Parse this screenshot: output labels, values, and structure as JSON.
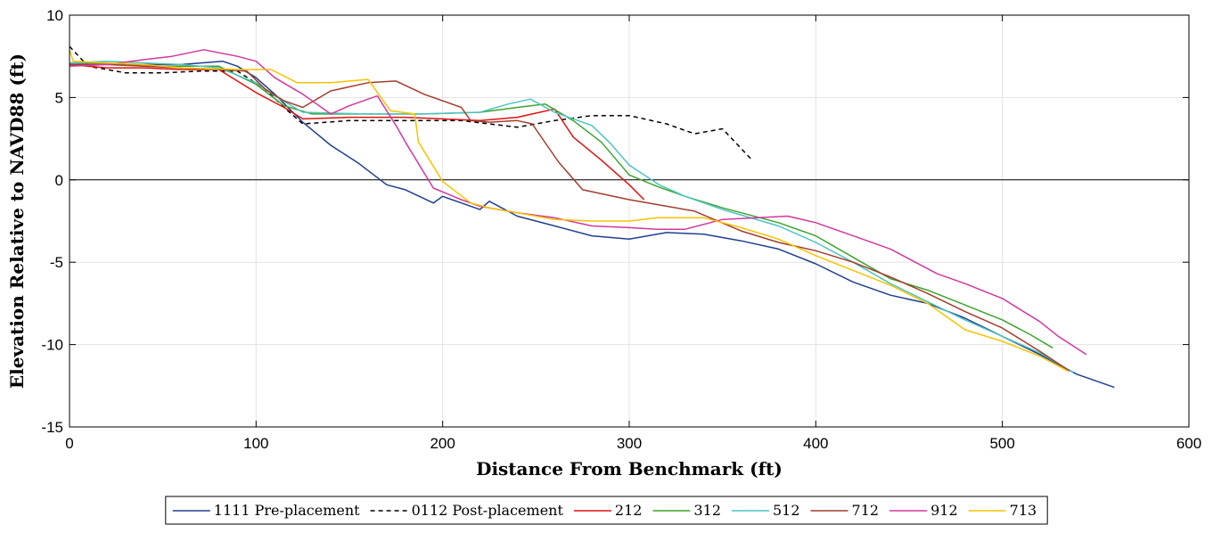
{
  "chart_data": {
    "type": "line",
    "xlabel": "Distance From Benchmark (ft)",
    "ylabel": "Elevation Relative to NAVD88 (ft)",
    "xlim": [
      0,
      600
    ],
    "ylim": [
      -15,
      10
    ],
    "xticks": [
      0,
      100,
      200,
      300,
      400,
      500,
      600
    ],
    "yticks": [
      -15,
      -10,
      -5,
      0,
      5,
      10
    ],
    "grid": true,
    "zero_line": true,
    "legend_position": "bottom-outside",
    "series": [
      {
        "name": "1111 Pre-placement",
        "color": "#1f3f8f",
        "dash": "solid",
        "points": [
          [
            0,
            7
          ],
          [
            20,
            7
          ],
          [
            40,
            7
          ],
          [
            60,
            7
          ],
          [
            82,
            7.2
          ],
          [
            90,
            6.9
          ],
          [
            100,
            6.2
          ],
          [
            110,
            5.2
          ],
          [
            125,
            3.5
          ],
          [
            140,
            2.1
          ],
          [
            155,
            1
          ],
          [
            170,
            -0.3
          ],
          [
            180,
            -0.6
          ],
          [
            195,
            -1.4
          ],
          [
            200,
            -1
          ],
          [
            210,
            -1.4
          ],
          [
            220,
            -1.8
          ],
          [
            225,
            -1.3
          ],
          [
            240,
            -2.2
          ],
          [
            260,
            -2.8
          ],
          [
            280,
            -3.4
          ],
          [
            300,
            -3.6
          ],
          [
            320,
            -3.2
          ],
          [
            340,
            -3.3
          ],
          [
            360,
            -3.7
          ],
          [
            380,
            -4.2
          ],
          [
            400,
            -5.1
          ],
          [
            420,
            -6.2
          ],
          [
            440,
            -7
          ],
          [
            460,
            -7.5
          ],
          [
            480,
            -8.4
          ],
          [
            500,
            -9.5
          ],
          [
            520,
            -10.6
          ],
          [
            540,
            -11.8
          ],
          [
            560,
            -12.6
          ]
        ]
      },
      {
        "name": "0112 Post-placement",
        "color": "#000000",
        "dash": "dashed",
        "points": [
          [
            0,
            8.1
          ],
          [
            10,
            6.9
          ],
          [
            30,
            6.5
          ],
          [
            50,
            6.5
          ],
          [
            70,
            6.6
          ],
          [
            90,
            6.6
          ],
          [
            105,
            5.5
          ],
          [
            115,
            4.4
          ],
          [
            125,
            3.4
          ],
          [
            150,
            3.6
          ],
          [
            180,
            3.6
          ],
          [
            210,
            3.6
          ],
          [
            240,
            3.2
          ],
          [
            260,
            3.6
          ],
          [
            280,
            3.9
          ],
          [
            300,
            3.9
          ],
          [
            320,
            3.4
          ],
          [
            335,
            2.8
          ],
          [
            350,
            3.1
          ],
          [
            365,
            1.3
          ]
        ]
      },
      {
        "name": "212",
        "color": "#dd1111",
        "dash": "solid",
        "points": [
          [
            0,
            7
          ],
          [
            20,
            6.8
          ],
          [
            40,
            6.8
          ],
          [
            60,
            6.7
          ],
          [
            80,
            6.7
          ],
          [
            100,
            5.3
          ],
          [
            115,
            4.4
          ],
          [
            125,
            3.7
          ],
          [
            150,
            3.8
          ],
          [
            180,
            3.8
          ],
          [
            200,
            3.7
          ],
          [
            220,
            3.6
          ],
          [
            240,
            3.8
          ],
          [
            252,
            4.1
          ],
          [
            260,
            4.3
          ],
          [
            270,
            2.6
          ],
          [
            285,
            1.2
          ],
          [
            300,
            -0.3
          ],
          [
            308,
            -1.2
          ]
        ]
      },
      {
        "name": "312",
        "color": "#3ea32e",
        "dash": "solid",
        "points": [
          [
            0,
            7.1
          ],
          [
            20,
            7.1
          ],
          [
            40,
            6.9
          ],
          [
            60,
            6.9
          ],
          [
            80,
            6.9
          ],
          [
            100,
            5.8
          ],
          [
            115,
            4.5
          ],
          [
            130,
            4
          ],
          [
            160,
            4
          ],
          [
            190,
            4
          ],
          [
            220,
            4.1
          ],
          [
            240,
            4.4
          ],
          [
            255,
            4.6
          ],
          [
            270,
            3.6
          ],
          [
            285,
            2.3
          ],
          [
            300,
            0.3
          ],
          [
            315,
            -0.4
          ],
          [
            330,
            -1
          ],
          [
            350,
            -1.7
          ],
          [
            380,
            -2.6
          ],
          [
            400,
            -3.4
          ],
          [
            420,
            -4.7
          ],
          [
            440,
            -6
          ],
          [
            460,
            -6.7
          ],
          [
            480,
            -7.6
          ],
          [
            500,
            -8.5
          ],
          [
            515,
            -9.4
          ],
          [
            527,
            -10.2
          ]
        ]
      },
      {
        "name": "512",
        "color": "#4ec3c3",
        "dash": "solid",
        "points": [
          [
            0,
            7.1
          ],
          [
            20,
            7.2
          ],
          [
            40,
            7.1
          ],
          [
            60,
            7
          ],
          [
            80,
            6.8
          ],
          [
            100,
            5.9
          ],
          [
            110,
            5.1
          ],
          [
            125,
            4.1
          ],
          [
            160,
            4
          ],
          [
            190,
            4
          ],
          [
            220,
            4.1
          ],
          [
            235,
            4.6
          ],
          [
            247,
            4.9
          ],
          [
            260,
            4.1
          ],
          [
            280,
            3.3
          ],
          [
            290,
            2.2
          ],
          [
            300,
            0.9
          ],
          [
            316,
            -0.3
          ],
          [
            330,
            -1
          ],
          [
            350,
            -1.8
          ],
          [
            380,
            -2.8
          ],
          [
            400,
            -3.8
          ],
          [
            420,
            -5
          ],
          [
            440,
            -6.3
          ],
          [
            460,
            -7.4
          ],
          [
            480,
            -8.5
          ],
          [
            500,
            -9.5
          ],
          [
            520,
            -10.5
          ],
          [
            538,
            -11.7
          ]
        ]
      },
      {
        "name": "712",
        "color": "#a23d2e",
        "dash": "solid",
        "points": [
          [
            0,
            7
          ],
          [
            20,
            7
          ],
          [
            40,
            6.9
          ],
          [
            60,
            6.8
          ],
          [
            80,
            6.7
          ],
          [
            95,
            6.6
          ],
          [
            105,
            5.5
          ],
          [
            115,
            4.8
          ],
          [
            125,
            4.4
          ],
          [
            140,
            5.4
          ],
          [
            160,
            5.9
          ],
          [
            175,
            6
          ],
          [
            190,
            5.2
          ],
          [
            210,
            4.4
          ],
          [
            215,
            3.6
          ],
          [
            225,
            3.5
          ],
          [
            240,
            3.6
          ],
          [
            248,
            3.4
          ],
          [
            262,
            1.1
          ],
          [
            275,
            -0.6
          ],
          [
            300,
            -1.2
          ],
          [
            320,
            -1.6
          ],
          [
            335,
            -1.9
          ],
          [
            360,
            -3.1
          ],
          [
            380,
            -3.8
          ],
          [
            400,
            -4.3
          ],
          [
            420,
            -5
          ],
          [
            440,
            -5.9
          ],
          [
            460,
            -6.9
          ],
          [
            480,
            -8
          ],
          [
            500,
            -9
          ],
          [
            520,
            -10.4
          ],
          [
            536,
            -11.6
          ]
        ]
      },
      {
        "name": "912",
        "color": "#d0399f",
        "dash": "solid",
        "points": [
          [
            0,
            6.9
          ],
          [
            20,
            7
          ],
          [
            40,
            7.3
          ],
          [
            55,
            7.5
          ],
          [
            72,
            7.9
          ],
          [
            90,
            7.5
          ],
          [
            100,
            7.2
          ],
          [
            110,
            6.2
          ],
          [
            125,
            5.2
          ],
          [
            140,
            4
          ],
          [
            150,
            4.5
          ],
          [
            165,
            5.1
          ],
          [
            175,
            3.3
          ],
          [
            180,
            2.3
          ],
          [
            195,
            -0.5
          ],
          [
            210,
            -1.2
          ],
          [
            220,
            -1.6
          ],
          [
            240,
            -2
          ],
          [
            260,
            -2.3
          ],
          [
            280,
            -2.8
          ],
          [
            300,
            -2.9
          ],
          [
            315,
            -3
          ],
          [
            330,
            -3
          ],
          [
            350,
            -2.4
          ],
          [
            385,
            -2.2
          ],
          [
            400,
            -2.6
          ],
          [
            420,
            -3.4
          ],
          [
            440,
            -4.2
          ],
          [
            465,
            -5.7
          ],
          [
            480,
            -6.3
          ],
          [
            500,
            -7.2
          ],
          [
            520,
            -8.6
          ],
          [
            530,
            -9.5
          ],
          [
            545,
            -10.6
          ]
        ]
      },
      {
        "name": "713",
        "color": "#f6c300",
        "dash": "solid",
        "points": [
          [
            0,
            7.9
          ],
          [
            2,
            7.2
          ],
          [
            20,
            7.1
          ],
          [
            40,
            7
          ],
          [
            60,
            6.8
          ],
          [
            90,
            6.7
          ],
          [
            108,
            6.7
          ],
          [
            122,
            5.9
          ],
          [
            140,
            5.9
          ],
          [
            160,
            6.1
          ],
          [
            172,
            4.2
          ],
          [
            185,
            4
          ],
          [
            187,
            2.3
          ],
          [
            200,
            -0.1
          ],
          [
            215,
            -1.4
          ],
          [
            225,
            -1.7
          ],
          [
            240,
            -2
          ],
          [
            260,
            -2.4
          ],
          [
            280,
            -2.5
          ],
          [
            300,
            -2.5
          ],
          [
            315,
            -2.3
          ],
          [
            340,
            -2.3
          ],
          [
            360,
            -2.9
          ],
          [
            380,
            -3.6
          ],
          [
            400,
            -4.6
          ],
          [
            420,
            -5.5
          ],
          [
            440,
            -6.4
          ],
          [
            460,
            -7.5
          ],
          [
            480,
            -9.1
          ],
          [
            500,
            -9.8
          ],
          [
            520,
            -10.7
          ],
          [
            535,
            -11.6
          ]
        ]
      }
    ]
  }
}
